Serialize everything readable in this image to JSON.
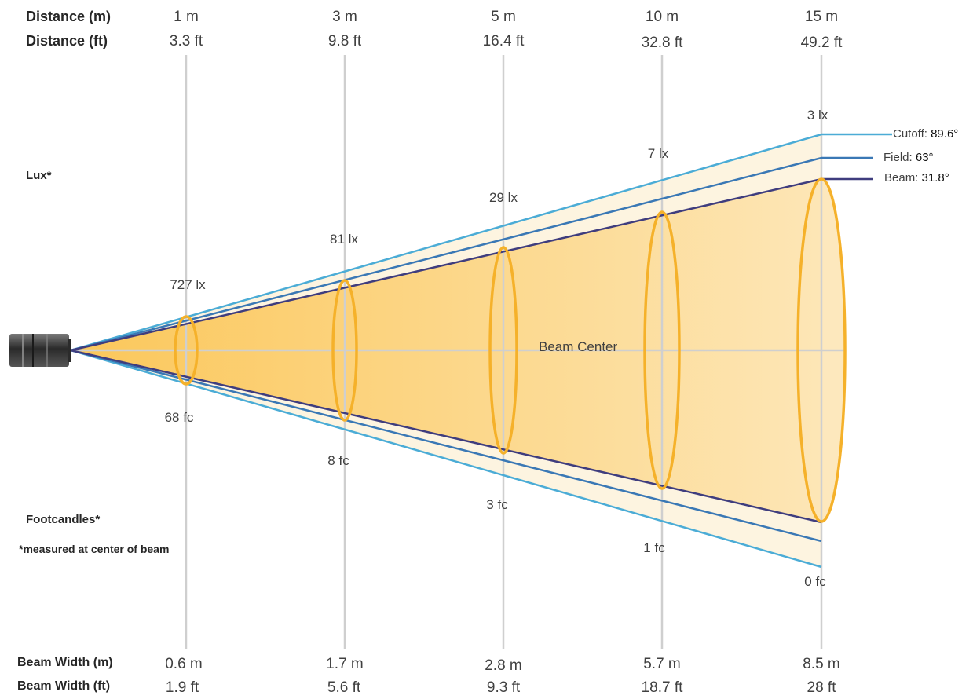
{
  "headers": {
    "distance_m": "Distance (m)",
    "distance_ft": "Distance (ft)",
    "lux": "Lux*",
    "footcandles": "Footcandles*",
    "note": "*measured at center of beam",
    "beam_width_m": "Beam Width (m)",
    "beam_width_ft": "Beam Width (ft)"
  },
  "columns": [
    {
      "distance_m": "1 m",
      "distance_ft": "3.3 ft",
      "lux": "727 lx",
      "fc": "68 fc",
      "width_m": "0.6 m",
      "width_ft": "1.9 ft"
    },
    {
      "distance_m": "3 m",
      "distance_ft": "9.8 ft",
      "lux": "81 lx",
      "fc": "8 fc",
      "width_m": "1.7 m",
      "width_ft": "5.6 ft"
    },
    {
      "distance_m": "5 m",
      "distance_ft": "16.4 ft",
      "lux": "29 lx",
      "fc": "3 fc",
      "width_m": "2.8 m",
      "width_ft": "9.3 ft"
    },
    {
      "distance_m": "10 m",
      "distance_ft": "32.8 ft",
      "lux": "7 lx",
      "fc": "1 fc",
      "width_m": "5.7 m",
      "width_ft": "18.7 ft"
    },
    {
      "distance_m": "15 m",
      "distance_ft": "49.2 ft",
      "lux": "3 lx",
      "fc": "0 fc",
      "width_m": "8.5 m",
      "width_ft": "28 ft"
    }
  ],
  "center_label": "Beam Center",
  "angles": {
    "cutoff_label": "Cutoff:",
    "cutoff_value": "89.6°",
    "field_label": "Field:",
    "field_value": "63°",
    "beam_label": "Beam:",
    "beam_value": "31.8°"
  },
  "colors": {
    "cutoff_line": "#4bacd6",
    "field_line": "#3a78b5",
    "beam_line": "#3f3d7e",
    "ellipse": "#f5b12a",
    "beam_fill": "#fbd07a",
    "field_fill": "#fdf3dc",
    "guide": "#cfcfcf"
  }
}
